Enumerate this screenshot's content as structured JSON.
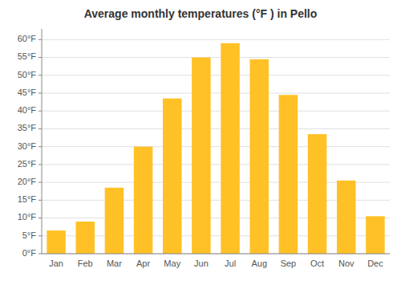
{
  "chart_data": {
    "type": "bar",
    "title": "Average monthly temperatures (°F ) in Pello",
    "categories": [
      "Jan",
      "Feb",
      "Mar",
      "Apr",
      "May",
      "Jun",
      "Jul",
      "Aug",
      "Sep",
      "Oct",
      "Nov",
      "Dec"
    ],
    "values": [
      6.5,
      9.0,
      18.5,
      30.0,
      43.5,
      55.0,
      59.0,
      54.5,
      44.5,
      33.5,
      20.5,
      10.5
    ],
    "color": "#FFC125",
    "ylim": [
      0,
      63
    ],
    "yticks": [
      {
        "value": 0,
        "label": "0°F"
      },
      {
        "value": 5,
        "label": "5°F"
      },
      {
        "value": 10,
        "label": "10°F"
      },
      {
        "value": 15,
        "label": "15°F"
      },
      {
        "value": 20,
        "label": "20°F"
      },
      {
        "value": 25,
        "label": "25°F"
      },
      {
        "value": 30,
        "label": "30°F"
      },
      {
        "value": 35,
        "label": "35°F"
      },
      {
        "value": 40,
        "label": "40°F"
      },
      {
        "value": 45,
        "label": "45°F"
      },
      {
        "value": 50,
        "label": "50°F"
      },
      {
        "value": 55,
        "label": "55°F"
      },
      {
        "value": 60,
        "label": "60°F"
      }
    ],
    "grid": true
  }
}
